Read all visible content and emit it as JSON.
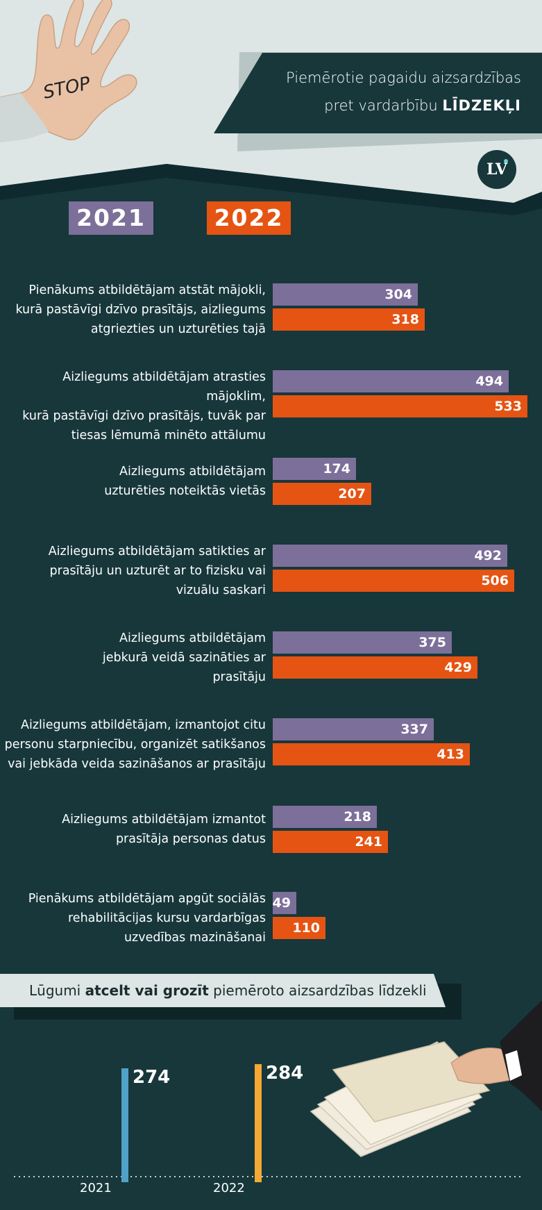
{
  "header": {
    "title_line1": "Piemērotie pagaidu aizsardzības",
    "title_line2_normal": "pret vardarbību",
    "title_line2_bold": "LĪDZEKĻI",
    "stop_text": "STOP",
    "logo_text": "LV"
  },
  "legend": {
    "year_2021": "2021",
    "year_2022": "2022"
  },
  "colors": {
    "bg_dark": "#17373b",
    "bg_light": "#dde6e4",
    "purple": "#7c6f99",
    "orange": "#e55413",
    "blue": "#4fa3c8",
    "amber": "#f4a935"
  },
  "chart_data": [
    {
      "type": "bar",
      "orientation": "horizontal",
      "categories": [
        [
          "Pienākums atbildētājam atstāt mājokli,",
          "kurā pastāvīgi dzīvo prasītājs, aizliegums",
          "atgriezties un uzturēties tajā"
        ],
        [
          "Aizliegums atbildētājam atrasties mājoklim,",
          "kurā pastāvīgi dzīvo prasītājs, tuvāk par",
          "tiesas lēmumā minēto attālumu"
        ],
        [
          "Aizliegums atbildētājam",
          "uzturēties noteiktās vietās"
        ],
        [
          "Aizliegums atbildētājam satikties ar",
          "prasītāju un uzturēt ar to fizisku vai",
          "vizuālu saskari"
        ],
        [
          "Aizliegums atbildētājam",
          "jebkurā veidā sazināties ar",
          "prasītāju"
        ],
        [
          "Aizliegums atbildētājam, izmantojot citu",
          "personu starpniecību, organizēt satikšanos",
          "vai jebkāda veida sazināšanos ar prasītāju"
        ],
        [
          "Aizliegums atbildētājam izmantot",
          "prasītāja personas datus"
        ],
        [
          "Pienākums atbildētājam apgūt sociālās",
          "rehabilitācijas kursu vardarbīgas",
          "uzvedības mazināšanai"
        ]
      ],
      "series": [
        {
          "name": "2021",
          "values": [
            304,
            494,
            174,
            492,
            375,
            337,
            218,
            49
          ]
        },
        {
          "name": "2022",
          "values": [
            318,
            533,
            207,
            506,
            429,
            413,
            241,
            110
          ]
        }
      ]
    },
    {
      "type": "bar",
      "title_normal_1": "Lūgumi ",
      "title_bold": "atcelt vai grozīt",
      "title_normal_2": " piemēroto aizsardzības līdzekli",
      "categories": [
        "2021",
        "2022"
      ],
      "values": [
        274,
        284
      ]
    }
  ]
}
